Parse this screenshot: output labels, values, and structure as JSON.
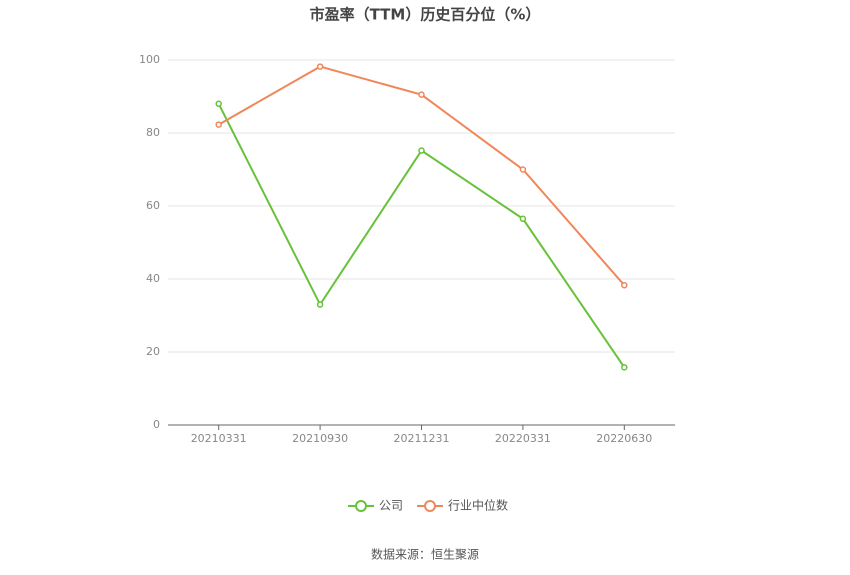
{
  "chart_data": {
    "type": "line",
    "title": "市盈率（TTM）历史百分位（%）",
    "categories": [
      "20210331",
      "20210930",
      "20211231",
      "20220331",
      "20220630"
    ],
    "series": [
      {
        "name": "公司",
        "color": "#67c23a",
        "values": [
          88,
          33,
          75.2,
          56.5,
          15.8
        ]
      },
      {
        "name": "行业中位数",
        "color": "#f0875a",
        "values": [
          82.3,
          98.2,
          90.5,
          70,
          38.3
        ]
      }
    ],
    "ylim": [
      0,
      100
    ],
    "yticks": [
      0,
      20,
      40,
      60,
      80,
      100
    ],
    "grid": true,
    "legend": "bottom",
    "source": "数据来源：恒生聚源"
  }
}
